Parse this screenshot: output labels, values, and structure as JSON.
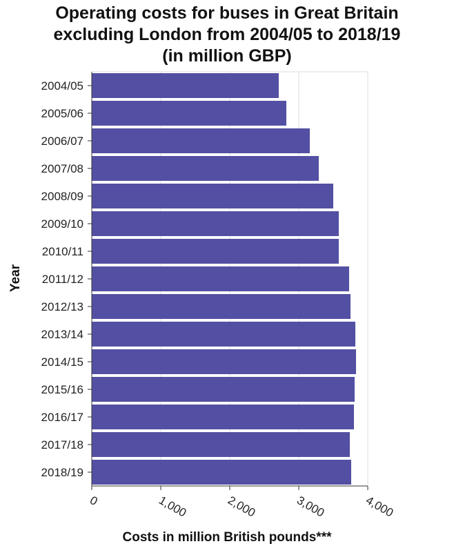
{
  "chart_data": {
    "type": "bar",
    "orientation": "horizontal",
    "title_lines": [
      "Operating costs for buses in Great Britain",
      "excluding London from 2004/05 to 2018/19",
      "(in million GBP)"
    ],
    "xlabel": "Costs in million British pounds***",
    "ylabel": "Year",
    "xlim": [
      0,
      4000
    ],
    "xticks": [
      0,
      1000,
      2000,
      3000,
      4000
    ],
    "xtick_labels": [
      "0",
      "1,000",
      "2,000",
      "3,000",
      "4,000"
    ],
    "grid": "vertical",
    "categories": [
      "2004/05",
      "2005/06",
      "2006/07",
      "2007/08",
      "2008/09",
      "2009/10",
      "2010/11",
      "2011/12",
      "2012/13",
      "2013/14",
      "2014/15",
      "2015/16",
      "2016/17",
      "2017/18",
      "2018/19"
    ],
    "values": [
      2710,
      2820,
      3160,
      3290,
      3500,
      3580,
      3580,
      3730,
      3750,
      3820,
      3830,
      3810,
      3800,
      3740,
      3760
    ],
    "bar_color": "#5350a3"
  }
}
